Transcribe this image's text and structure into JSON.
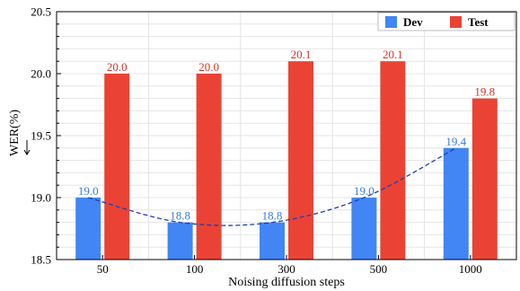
{
  "chart_data": {
    "type": "bar",
    "categories": [
      "50",
      "100",
      "300",
      "500",
      "1000"
    ],
    "series": [
      {
        "name": "Dev",
        "values": [
          19.0,
          18.8,
          18.8,
          19.0,
          19.4
        ],
        "color": "#4285f4"
      },
      {
        "name": "Test",
        "values": [
          20.0,
          20.0,
          20.1,
          20.1,
          19.8
        ],
        "color": "#ea4335"
      }
    ],
    "trend_line": {
      "series": "Dev",
      "color": "#1f3fa8",
      "style": "dashed"
    },
    "xlabel": "Noising diffusion steps",
    "ylabel": "WER(%)",
    "ylim": [
      18.5,
      20.5
    ],
    "yticks": [
      18.5,
      19.0,
      19.5,
      20.0,
      20.5
    ],
    "grid": true,
    "legend_position": "top-right",
    "value_label_colors": {
      "Dev": "#3a7be0",
      "Test": "#d93025"
    }
  }
}
